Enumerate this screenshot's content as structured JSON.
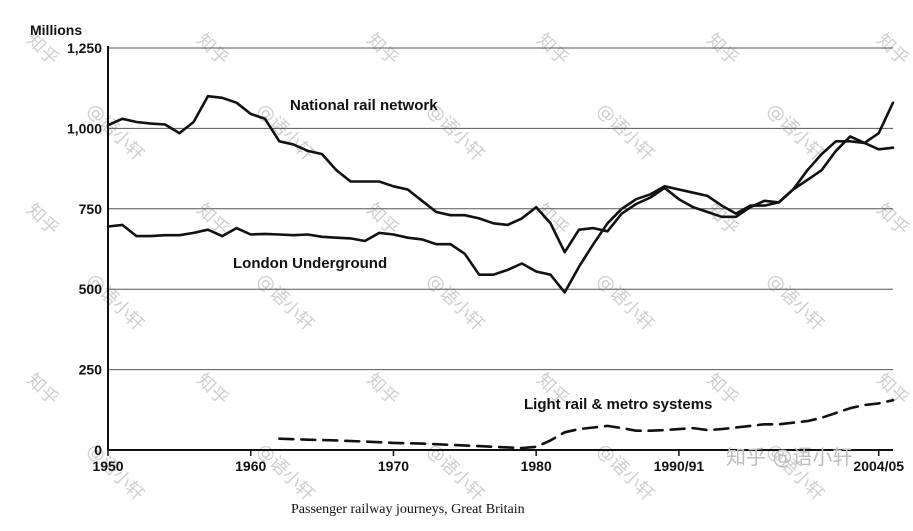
{
  "chart_data": {
    "type": "line",
    "caption": "Passenger railway journeys, Great Britain",
    "yunit": "Millions",
    "ylim": [
      0,
      1250
    ],
    "yticks": [
      0,
      250,
      500,
      750,
      1000,
      1250
    ],
    "ytick_labels": [
      "0",
      "250",
      "500",
      "750",
      "1,000",
      "1,250"
    ],
    "xlim": [
      1950,
      2005
    ],
    "xticks": [
      1950,
      1960,
      1970,
      1980,
      1990,
      2004
    ],
    "xtick_labels": [
      "1950",
      "1960",
      "1970",
      "1980",
      "1990/91",
      "2004/05"
    ],
    "grid": true,
    "series": [
      {
        "name": "National rail network",
        "style": "solid",
        "x": [
          1950,
          1951,
          1952,
          1953,
          1954,
          1955,
          1956,
          1957,
          1958,
          1959,
          1960,
          1961,
          1962,
          1963,
          1964,
          1965,
          1966,
          1967,
          1968,
          1969,
          1970,
          1971,
          1972,
          1973,
          1974,
          1975,
          1976,
          1977,
          1978,
          1979,
          1980,
          1981,
          1982,
          1983,
          1984,
          1985,
          1986,
          1987,
          1988,
          1989,
          1990,
          1991,
          1992,
          1993,
          1994,
          1995,
          1996,
          1997,
          1998,
          1999,
          2000,
          2001,
          2002,
          2003,
          2004,
          2005
        ],
        "y": [
          1010,
          1030,
          1020,
          1015,
          1012,
          985,
          1020,
          1100,
          1095,
          1080,
          1045,
          1030,
          960,
          950,
          930,
          920,
          870,
          835,
          835,
          835,
          820,
          810,
          775,
          740,
          730,
          730,
          720,
          705,
          700,
          720,
          755,
          705,
          615,
          685,
          690,
          680,
          735,
          765,
          785,
          815,
          780,
          755,
          740,
          725,
          725,
          755,
          775,
          770,
          810,
          870,
          920,
          960,
          960,
          955,
          985,
          1080
        ]
      },
      {
        "name": "London Underground",
        "style": "solid",
        "x": [
          1950,
          1951,
          1952,
          1953,
          1954,
          1955,
          1956,
          1957,
          1958,
          1959,
          1960,
          1961,
          1962,
          1963,
          1964,
          1965,
          1966,
          1967,
          1968,
          1969,
          1970,
          1971,
          1972,
          1973,
          1974,
          1975,
          1976,
          1977,
          1978,
          1979,
          1980,
          1981,
          1982,
          1983,
          1984,
          1985,
          1986,
          1987,
          1988,
          1989,
          1990,
          1991,
          1992,
          1993,
          1994,
          1995,
          1996,
          1997,
          1998,
          1999,
          2000,
          2001,
          2002,
          2003,
          2004,
          2005
        ],
        "y": [
          695,
          700,
          665,
          665,
          668,
          668,
          675,
          685,
          665,
          690,
          670,
          672,
          670,
          668,
          670,
          663,
          660,
          658,
          650,
          675,
          670,
          660,
          655,
          640,
          640,
          610,
          545,
          545,
          560,
          580,
          555,
          545,
          490,
          570,
          640,
          705,
          750,
          780,
          795,
          820,
          810,
          800,
          790,
          760,
          735,
          760,
          760,
          770,
          810,
          840,
          870,
          930,
          975,
          955,
          935,
          940
        ]
      },
      {
        "name": "Light rail & metro systems",
        "style": "dashed",
        "x": [
          1962,
          1964,
          1966,
          1968,
          1970,
          1972,
          1974,
          1976,
          1978,
          1979,
          1980,
          1981,
          1982,
          1983,
          1984,
          1985,
          1986,
          1987,
          1988,
          1989,
          1990,
          1991,
          1992,
          1993,
          1994,
          1995,
          1996,
          1997,
          1998,
          1999,
          2000,
          2001,
          2002,
          2003,
          2004,
          2005
        ],
        "y": [
          35,
          32,
          30,
          26,
          22,
          20,
          16,
          12,
          8,
          6,
          10,
          30,
          55,
          65,
          70,
          75,
          68,
          60,
          60,
          62,
          65,
          68,
          62,
          65,
          70,
          75,
          80,
          80,
          85,
          90,
          100,
          115,
          130,
          140,
          145,
          155
        ]
      }
    ]
  },
  "watermark": {
    "text_a": "知乎",
    "text_b": "@语小轩",
    "corner": "知乎 @语小轩"
  }
}
